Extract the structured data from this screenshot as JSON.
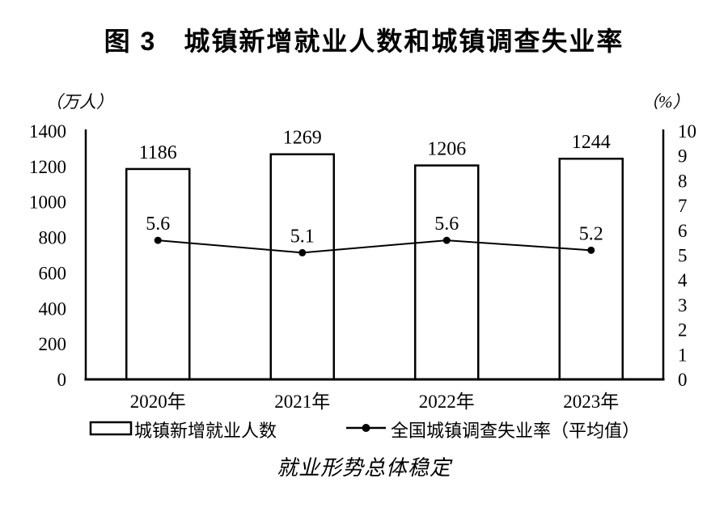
{
  "title": "图 3　城镇新增就业人数和城镇调查失业率",
  "caption": "就业形势总体稳定",
  "chart_data": {
    "type": "bar",
    "combo": "bar series on left axis + line series on right axis",
    "title": "图 3　城镇新增就业人数和城镇调查失业率",
    "categories": [
      "2020年",
      "2021年",
      "2022年",
      "2023年"
    ],
    "series": [
      {
        "name": "城镇新增就业人数",
        "chart_type": "bar",
        "axis": "left",
        "values": [
          1186,
          1269,
          1206,
          1244
        ]
      },
      {
        "name": "全国城镇调查失业率（平均值）",
        "chart_type": "line",
        "axis": "right",
        "values": [
          5.6,
          5.1,
          5.6,
          5.2
        ]
      }
    ],
    "left_axis": {
      "unit": "（万人）",
      "min": 0,
      "max": 1400,
      "tick_step": 200,
      "tick_labels": [
        "0",
        "200",
        "400",
        "600",
        "800",
        "1000",
        "1200",
        "1400"
      ]
    },
    "right_axis": {
      "unit": "（%）",
      "min": 0,
      "max": 10,
      "tick_step": 1,
      "tick_labels": [
        "0",
        "1",
        "2",
        "3",
        "4",
        "5",
        "6",
        "7",
        "8",
        "9",
        "10"
      ]
    },
    "legend_position": "bottom",
    "grid": false,
    "data_labels_shown": true,
    "colors": {
      "foreground": "#000000",
      "background": "#ffffff",
      "bar_fill": "#ffffff",
      "bar_stroke": "#000000",
      "line_color": "#000000",
      "marker_color": "#000000"
    }
  }
}
